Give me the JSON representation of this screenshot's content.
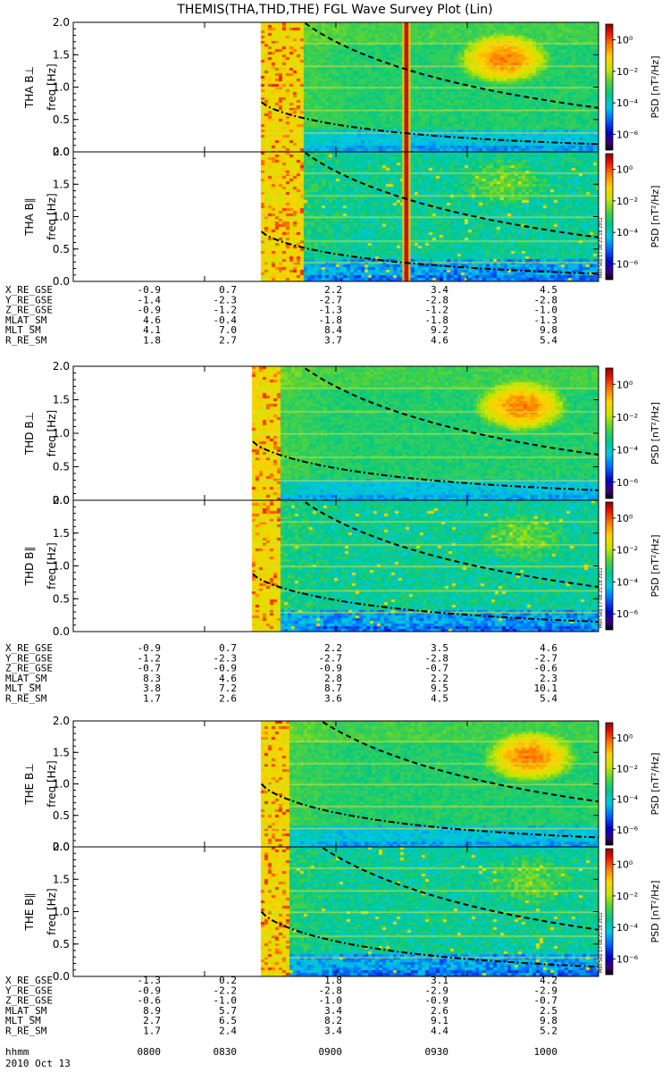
{
  "chart_data": {
    "type": "heatmap",
    "title": "THEMIS(THA,THD,THE) FGL Wave Survey Plot (Lin)",
    "date_label": "2010 Oct 13",
    "x_axis": {
      "label": "hhmm",
      "ticks": [
        "0800",
        "0830",
        "0900",
        "0930",
        "1000"
      ],
      "tick_minutes": [
        0,
        30,
        60,
        90,
        120
      ],
      "range_minutes": [
        0,
        120
      ]
    },
    "freq_axis": {
      "label": "freq [Hz]",
      "range": [
        0,
        2.0
      ],
      "ticks": [
        0.0,
        0.5,
        1.0,
        1.5,
        2.0
      ],
      "tick_labels": [
        "0.0",
        "0.5",
        "1.0",
        "1.5",
        "2.0"
      ]
    },
    "colorbar": {
      "label": "PSD [nT²/Hz]",
      "label_main": "PSD [nT",
      "label_sup": "2",
      "label_tail": "/Hz]",
      "scale": "log",
      "tick_exponents": [
        0,
        -2,
        -4,
        -6
      ],
      "tick_labels": [
        "10⁰",
        "10⁻²",
        "10⁻⁴",
        "10⁻⁶"
      ]
    },
    "stamp": "Mon Sep 17 08:21:18 2012",
    "probes": [
      {
        "name": "THA",
        "panels": [
          {
            "label": "THA B⊥",
            "component": "perp",
            "hot_spot": {
              "t": 98,
              "f": 1.45
            }
          },
          {
            "label": "THA B∥",
            "component": "par",
            "hot_spot": {
              "t": 98,
              "f": 1.55
            }
          }
        ],
        "data_start_min": 43,
        "hard_edge_min": 52,
        "spike_min": 76,
        "upper_curve": {
          "f0": 2.35,
          "f1": 0.68
        },
        "lower_curve": {
          "f0": 0.77,
          "f1": 0.12
        },
        "ephemeris": {
          "labels": [
            "X_RE_GSE",
            "Y_RE_GSE",
            "Z_RE_GSE",
            "MLAT_SM",
            "MLT_SM",
            "R_RE_SM"
          ],
          "values": [
            [
              "-0.9",
              "0.7",
              "2.2",
              "3.4",
              "4.5"
            ],
            [
              "-1.4",
              "-2.3",
              "-2.7",
              "-2.8",
              "-2.8"
            ],
            [
              "-0.9",
              "-1.2",
              "-1.3",
              "-1.2",
              "-1.0"
            ],
            [
              "4.6",
              "-0.4",
              "-1.8",
              "-1.8",
              "-1.3"
            ],
            [
              "4.1",
              "7.0",
              "8.4",
              "9.2",
              "9.8"
            ],
            [
              "1.8",
              "2.7",
              "3.7",
              "4.6",
              "5.4"
            ]
          ]
        }
      },
      {
        "name": "THD",
        "panels": [
          {
            "label": "THD B⊥",
            "component": "perp",
            "hot_spot": {
              "t": 102,
              "f": 1.42
            }
          },
          {
            "label": "THD B∥",
            "component": "par",
            "hot_spot": {
              "t": 102,
              "f": 1.45
            }
          }
        ],
        "data_start_min": 41,
        "hard_edge_min": 47,
        "spike_min": null,
        "upper_curve": {
          "f0": 2.45,
          "f1": 0.68
        },
        "lower_curve": {
          "f0": 0.88,
          "f1": 0.15
        },
        "ephemeris": {
          "labels": [
            "X_RE_GSE",
            "Y_RE_GSE",
            "Z_RE_GSE",
            "MLAT_SM",
            "MLT_SM",
            "R_RE_SM"
          ],
          "values": [
            [
              "-0.9",
              "0.7",
              "2.2",
              "3.5",
              "4.6"
            ],
            [
              "-1.2",
              "-2.3",
              "-2.7",
              "-2.8",
              "-2.7"
            ],
            [
              "-0.7",
              "-0.9",
              "-0.9",
              "-0.7",
              "-0.6"
            ],
            [
              "8.3",
              "4.6",
              "2.8",
              "2.2",
              "2.3"
            ],
            [
              "3.8",
              "7.2",
              "8.7",
              "9.5",
              "10.1"
            ],
            [
              "1.7",
              "2.6",
              "3.6",
              "4.5",
              "5.4"
            ]
          ]
        }
      },
      {
        "name": "THE",
        "panels": [
          {
            "label": "THE B⊥",
            "component": "perp",
            "hot_spot": {
              "t": 104,
              "f": 1.45
            }
          },
          {
            "label": "THE B∥",
            "component": "par",
            "hot_spot": {
              "t": 104,
              "f": 1.5
            }
          }
        ],
        "data_start_min": 43,
        "hard_edge_min": 49,
        "spike_min": null,
        "upper_curve": {
          "f0": 2.6,
          "f1": 0.72
        },
        "lower_curve": {
          "f0": 1.0,
          "f1": 0.15
        },
        "ephemeris": {
          "labels": [
            "X_RE_GSE",
            "Y_RE_GSE",
            "Z_RE_GSE",
            "MLAT_SM",
            "MLT_SM",
            "R_RE_SM"
          ],
          "values": [
            [
              "-1.3",
              "0.2",
              "1.8",
              "3.1",
              "4.2"
            ],
            [
              "-0.9",
              "-2.2",
              "-2.8",
              "-2.9",
              "-2.9"
            ],
            [
              "-0.6",
              "-1.0",
              "-1.0",
              "-0.9",
              "-0.7"
            ],
            [
              "8.9",
              "5.7",
              "3.4",
              "2.6",
              "2.5"
            ],
            [
              "2.7",
              "6.5",
              "8.2",
              "9.1",
              "9.8"
            ],
            [
              "1.7",
              "2.4",
              "3.4",
              "4.4",
              "5.2"
            ]
          ]
        }
      }
    ]
  }
}
